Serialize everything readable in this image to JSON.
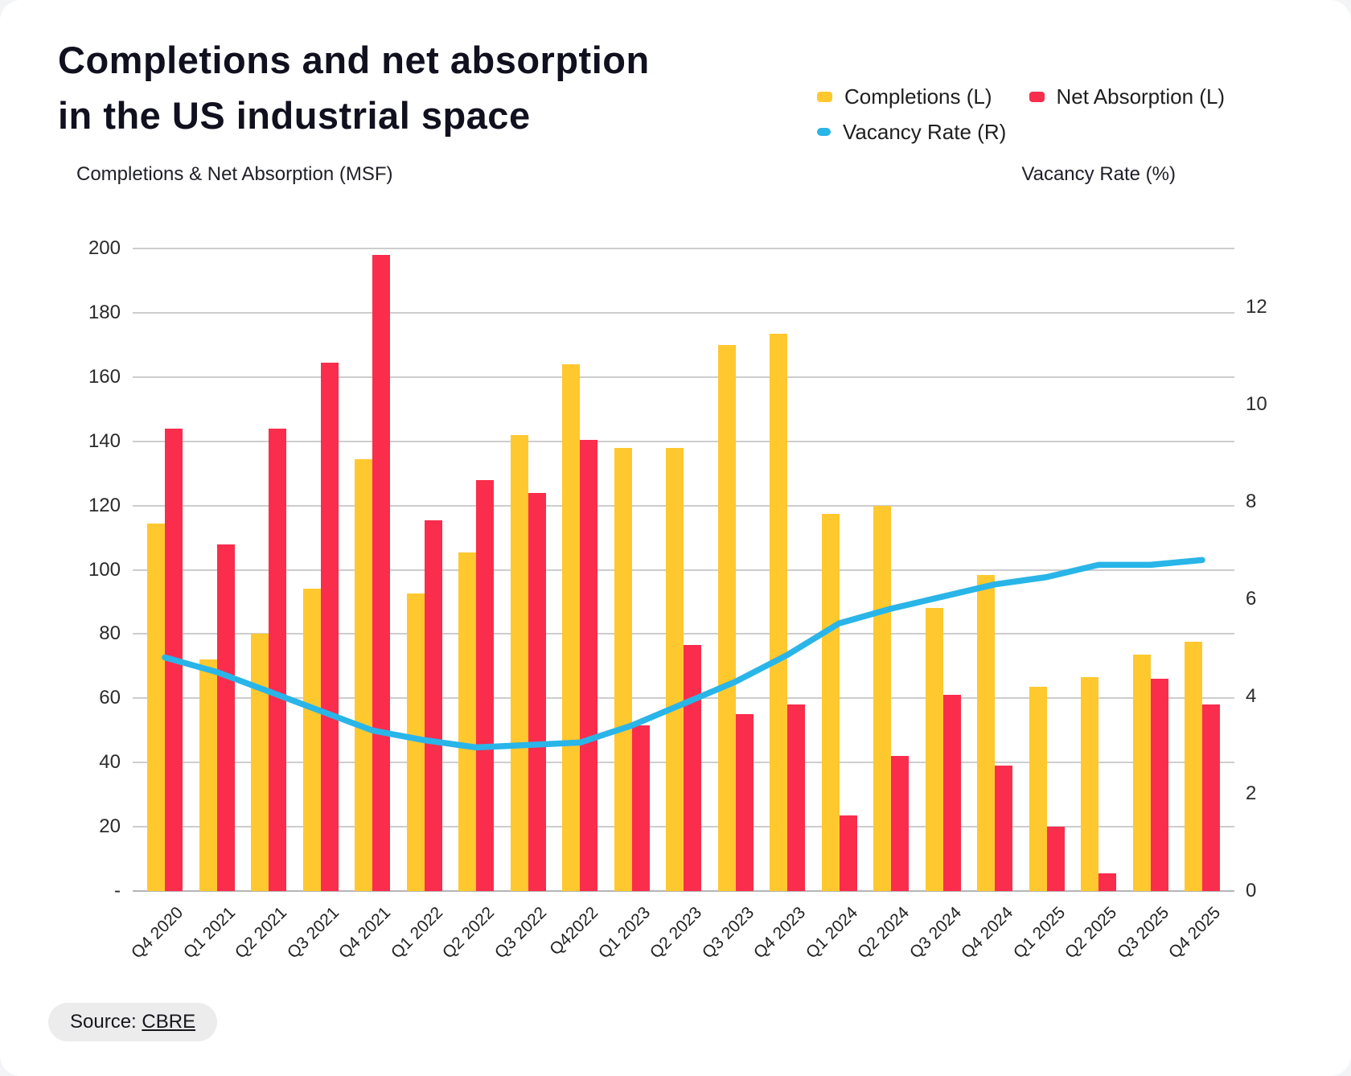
{
  "title": {
    "line1": "Completions and net absorption",
    "line2": "in the US industrial space"
  },
  "legend": {
    "completions": "Completions (L)",
    "net_absorption": "Net Absorption (L)",
    "vacancy": "Vacancy Rate (R)"
  },
  "axis_captions": {
    "left": "Completions & Net Absorption (MSF)",
    "right": "Vacancy Rate (%)"
  },
  "source": {
    "prefix": "Source:",
    "link": "CBRE"
  },
  "colors": {
    "completions": "#FFC82F",
    "net_absorption": "#FA2D4D",
    "vacancy": "#29B5E8",
    "grid": "#cdcdcd"
  },
  "chart_data": {
    "type": "bar+line combo",
    "title": "Completions and net absorption in the US industrial space",
    "left_ylabel": "Completions & Net Absorption (MSF)",
    "right_ylabel": "Vacancy Rate (%)",
    "left_ylim": [
      0,
      200
    ],
    "right_ylim": [
      0,
      13.2
    ],
    "grid": "horizontal",
    "legend_position": "top-right",
    "categories": [
      "Q4 2020",
      "Q1 2021",
      "Q2 2021",
      "Q3 2021",
      "Q4 2021",
      "Q1 2022",
      "Q2 2022",
      "Q3 2022",
      "Q42022",
      "Q1 2023",
      "Q2 2023",
      "Q3 2023",
      "Q4 2023",
      "Q1 2024",
      "Q2 2024",
      "Q3 2024",
      "Q4 2024",
      "Q1 2025",
      "Q2 2025",
      "Q3 2025",
      "Q4 2025"
    ],
    "series": [
      {
        "name": "Completions (L)",
        "axis": "left",
        "type": "bar",
        "values": [
          114.5,
          72,
          80,
          94,
          134.5,
          92.5,
          105.5,
          142,
          164,
          138,
          138,
          170,
          173.5,
          117.5,
          120,
          88,
          98.5,
          63.5,
          66.5,
          73.5,
          77.5
        ]
      },
      {
        "name": "Net Absorption (L)",
        "axis": "left",
        "type": "bar",
        "values": [
          144,
          108,
          144,
          164.5,
          198,
          115.5,
          128,
          124,
          140.5,
          51.5,
          76.5,
          55,
          58,
          23.5,
          42,
          61,
          39,
          20,
          5.5,
          66,
          58
        ]
      },
      {
        "name": "Vacancy Rate (R)",
        "axis": "right",
        "type": "line",
        "values": [
          4.8,
          4.5,
          4.1,
          3.7,
          3.3,
          3.1,
          2.95,
          3.0,
          3.05,
          3.4,
          3.85,
          4.3,
          4.85,
          5.5,
          5.8,
          6.05,
          6.3,
          6.45,
          6.7,
          6.7,
          6.8
        ]
      }
    ],
    "axes": {
      "left_ticks": [
        {
          "v": 200,
          "label": "200"
        },
        {
          "v": 180,
          "label": "180"
        },
        {
          "v": 160,
          "label": "160"
        },
        {
          "v": 140,
          "label": "140"
        },
        {
          "v": 120,
          "label": "120"
        },
        {
          "v": 100,
          "label": "100"
        },
        {
          "v": 80,
          "label": "80"
        },
        {
          "v": 60,
          "label": "60"
        },
        {
          "v": 40,
          "label": "40"
        },
        {
          "v": 20,
          "label": "20"
        },
        {
          "v": 0,
          "label": "-"
        }
      ],
      "right_ticks": [
        {
          "v": 12,
          "label": "12"
        },
        {
          "v": 10,
          "label": "10"
        },
        {
          "v": 8,
          "label": "8"
        },
        {
          "v": 6,
          "label": "6"
        },
        {
          "v": 4,
          "label": "4"
        },
        {
          "v": 2,
          "label": "2"
        },
        {
          "v": 0,
          "label": "0"
        }
      ]
    }
  }
}
